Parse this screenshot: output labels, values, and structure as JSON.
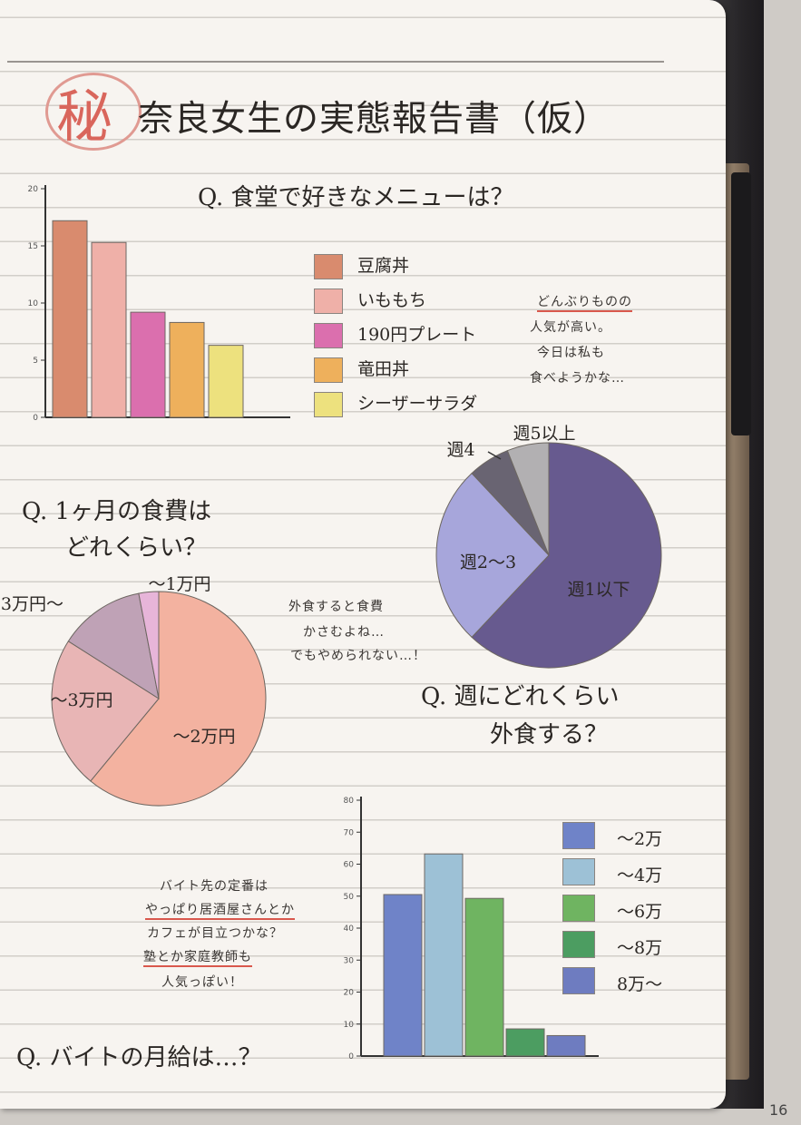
{
  "page": {
    "stamp_char": "秘",
    "title": "奈良女生の実態報告書（仮）",
    "page_number": "16"
  },
  "colors": {
    "bar1": [
      "#d98b6e",
      "#efb0a8",
      "#db6fae",
      "#eeb05c",
      "#ede17e"
    ],
    "pie_food": [
      "#f3b2a0",
      "#e8b5b5",
      "#bfa2b6",
      "#e7b5d9"
    ],
    "pie_eat": [
      "#675a8f",
      "#a7a6db",
      "#696472",
      "#b2b0b2"
    ],
    "bar2": [
      "#6f83c8",
      "#9dc1d6",
      "#6fb461",
      "#4c9d61",
      "#6e7cc0"
    ]
  },
  "notes": {
    "menu": [
      "どんぶりものの",
      "人気が高い。",
      "今日は私も",
      "食べようかな…"
    ],
    "food": [
      "外食すると食費",
      "かさむよね…",
      "でもやめられない…！"
    ],
    "job": [
      "バイト先の定番は",
      "やっぱり居酒屋さんとか",
      "カフェが目立つかな？",
      "塾とか家庭教師も",
      "人気っぽい！"
    ]
  },
  "chart_data": [
    {
      "type": "bar",
      "title": "Q. 食堂で好きなメニューは？",
      "categories": [
        "豆腐丼",
        "いももち",
        "190円プレート",
        "竜田丼",
        "シーザーサラダ"
      ],
      "values": [
        17.2,
        15.3,
        9.2,
        8.3,
        6.3
      ],
      "ylim": [
        0,
        20
      ],
      "yticks": [
        "0",
        "5",
        "10",
        "15",
        "20"
      ],
      "legend_position": "right"
    },
    {
      "type": "pie",
      "title": [
        "Q. 1ヶ月の食費は",
        "どれくらい？"
      ],
      "labels": [
        "～2万円",
        "～3万円",
        "3万円～",
        "～1万円"
      ],
      "values": [
        61,
        23,
        13,
        3
      ]
    },
    {
      "type": "pie",
      "title": [
        "Q. 週にどれくらい",
        "外食する？"
      ],
      "labels": [
        "週1以下",
        "週2～3",
        "週4",
        "週5以上"
      ],
      "values": [
        62,
        26,
        6,
        6
      ]
    },
    {
      "type": "bar",
      "title": "Q. バイトの月給は…？",
      "categories": [
        "～2万",
        "～4万",
        "～6万",
        "～8万",
        "8万～"
      ],
      "values": [
        50.5,
        63.2,
        49.3,
        8.5,
        6.4
      ],
      "ylim": [
        0,
        80
      ],
      "yticks": [
        "0",
        "10",
        "20",
        "30",
        "40",
        "50",
        "60",
        "70",
        "80"
      ],
      "legend_position": "right"
    }
  ]
}
